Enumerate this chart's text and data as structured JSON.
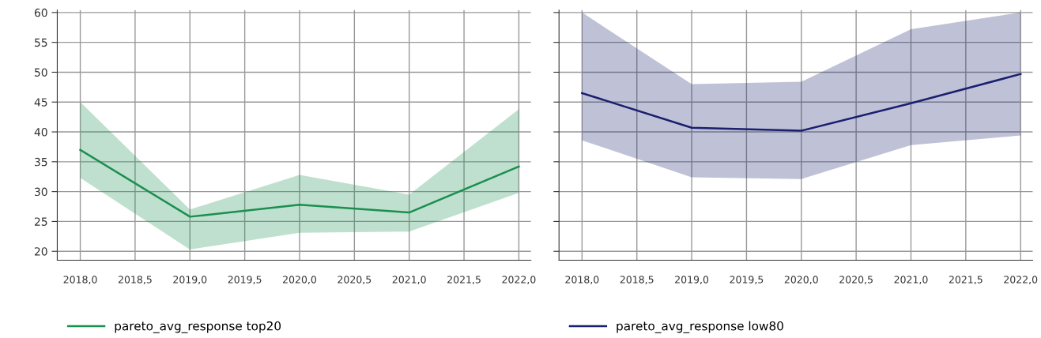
{
  "chart_data": [
    {
      "type": "line",
      "x": [
        2018,
        2019,
        2020,
        2021,
        2022
      ],
      "series": [
        {
          "name": "pareto_avg_response top20",
          "color": "#1a8f50",
          "values": [
            37,
            25.8,
            27.8,
            26.5,
            34.2
          ],
          "lower": [
            32.3,
            20.3,
            23.1,
            23.3,
            29.8
          ],
          "upper": [
            45,
            27,
            32.8,
            29.5,
            43.8
          ]
        }
      ],
      "xlim": [
        2017.79,
        2022.11
      ],
      "ylim": [
        18.5,
        60.4
      ],
      "xticks": [
        {
          "value": 2018,
          "label": "2018,0"
        },
        {
          "value": 2018.5,
          "label": "2018,5"
        },
        {
          "value": 2019,
          "label": "2019,0"
        },
        {
          "value": 2019.5,
          "label": "2019,5"
        },
        {
          "value": 2020,
          "label": "2020,0"
        },
        {
          "value": 2020.5,
          "label": "2020,5"
        },
        {
          "value": 2021,
          "label": "2021,0"
        },
        {
          "value": 2021.5,
          "label": "2021,5"
        },
        {
          "value": 2022,
          "label": "2022,0"
        }
      ],
      "yticks": [
        20,
        25,
        30,
        35,
        40,
        45,
        50,
        55,
        60
      ],
      "grid": true,
      "legend": "bottom left"
    },
    {
      "type": "line",
      "x": [
        2018,
        2019,
        2020,
        2021,
        2022
      ],
      "series": [
        {
          "name": "pareto_avg_response low80",
          "color": "#1a1f6e",
          "values": [
            46.5,
            40.7,
            40.2,
            44.8,
            49.7
          ],
          "lower": [
            38.6,
            32.4,
            32.1,
            37.8,
            39.4
          ],
          "upper": [
            60,
            48,
            48.4,
            57.2,
            60
          ]
        }
      ],
      "xlim": [
        2017.79,
        2022.11
      ],
      "ylim": [
        18.5,
        60.4
      ],
      "xticks": [
        {
          "value": 2018,
          "label": "2018,0"
        },
        {
          "value": 2018.5,
          "label": "2018,5"
        },
        {
          "value": 2019,
          "label": "2019,0"
        },
        {
          "value": 2019.5,
          "label": "2019,5"
        },
        {
          "value": 2020,
          "label": "2020,0"
        },
        {
          "value": 2020.5,
          "label": "2020,5"
        },
        {
          "value": 2021,
          "label": "2021,0"
        },
        {
          "value": 2021.5,
          "label": "2021,5"
        },
        {
          "value": 2022,
          "label": "2022,0"
        }
      ],
      "yticks": [
        20,
        25,
        30,
        35,
        40,
        45,
        50,
        55,
        60
      ],
      "grid": true,
      "legend": "bottom left",
      "tick_labels": "x"
    }
  ]
}
